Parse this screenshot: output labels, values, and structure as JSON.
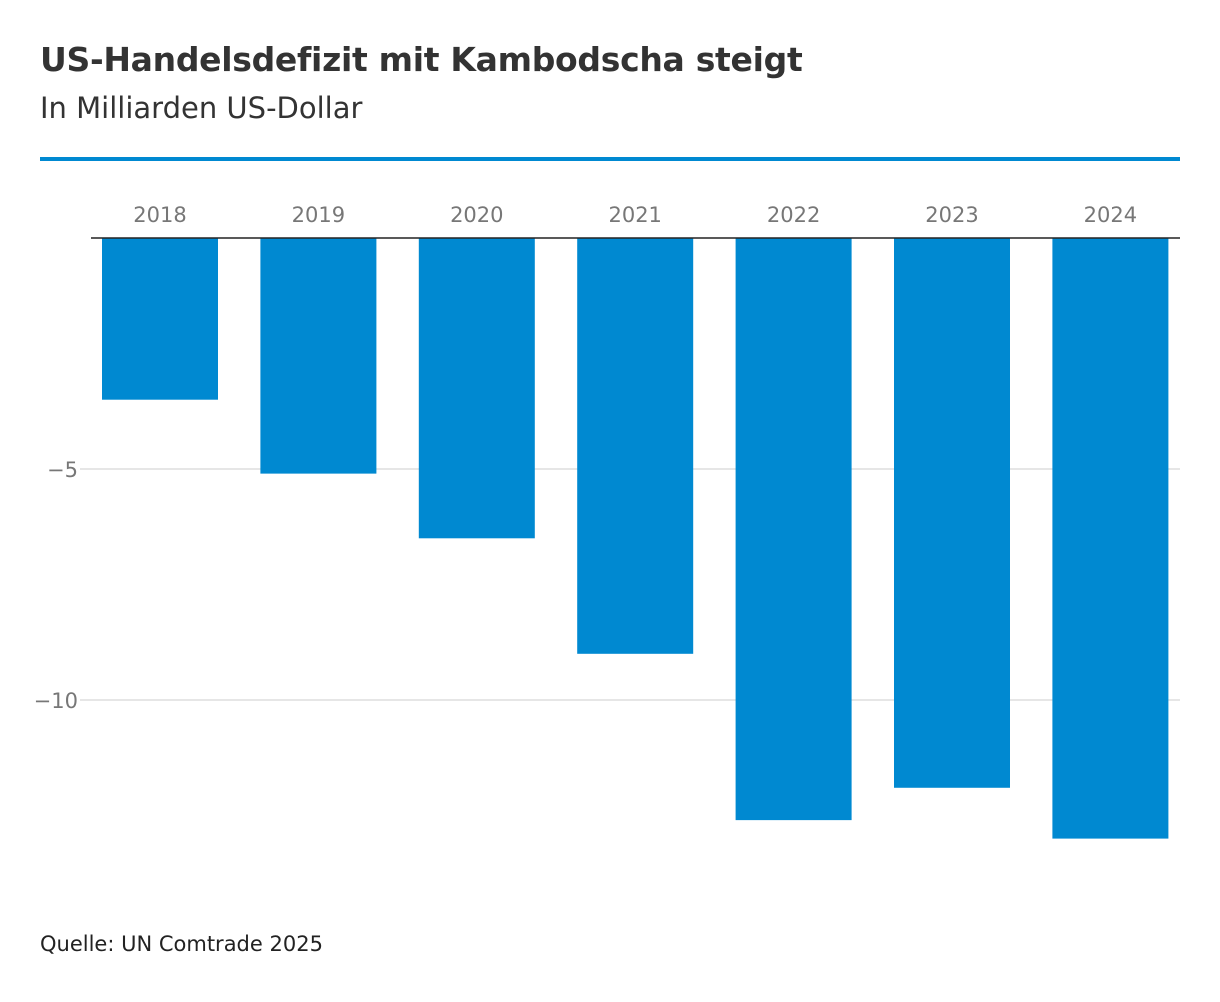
{
  "header": {
    "title": "US-Handelsdefizit mit Kambodscha steigt",
    "subtitle": "In Milliarden US-Dollar"
  },
  "footer": {
    "source": "Quelle: UN Comtrade 2025"
  },
  "colors": {
    "accent": "#0089d1",
    "bar": "#0089d1",
    "grid": "#dddddd",
    "axis": "#222222",
    "tick_text": "#777777"
  },
  "chart_data": {
    "type": "bar",
    "title": "US-Handelsdefizit mit Kambodscha steigt",
    "subtitle": "In Milliarden US-Dollar",
    "categories": [
      "2018",
      "2019",
      "2020",
      "2021",
      "2022",
      "2023",
      "2024"
    ],
    "values": [
      -3.5,
      -5.1,
      -6.5,
      -9.0,
      -12.6,
      -11.9,
      -13.0
    ],
    "xlabel": "",
    "ylabel": "",
    "ylim": [
      -14,
      0
    ],
    "yticks": [
      {
        "value": -5,
        "label": "−5"
      },
      {
        "value": -10,
        "label": "−10"
      }
    ],
    "xaxis_position": "top",
    "grid": true,
    "legend": "none"
  }
}
